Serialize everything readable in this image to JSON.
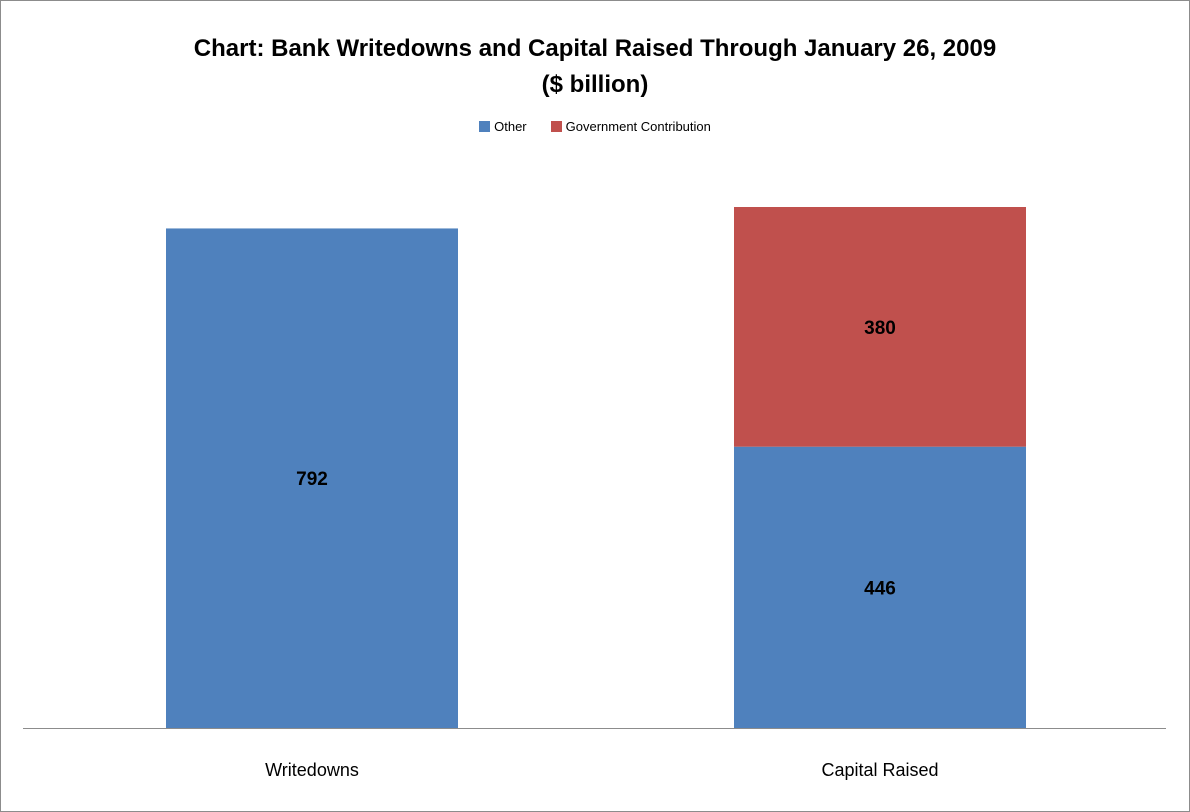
{
  "chart_data": {
    "type": "bar",
    "stacked": true,
    "title": "Chart: Bank Writedowns and Capital Raised Through January 26, 2009",
    "subtitle": "($ billion)",
    "categories": [
      "Writedowns",
      "Capital Raised"
    ],
    "series": [
      {
        "name": "Other",
        "color": "#4F81BD",
        "values": [
          792,
          446
        ]
      },
      {
        "name": "Government Contribution",
        "color": "#C0504D",
        "values": [
          null,
          380
        ]
      }
    ],
    "ylim": [
      0,
      826
    ],
    "grid": false,
    "legend_position": "top"
  }
}
